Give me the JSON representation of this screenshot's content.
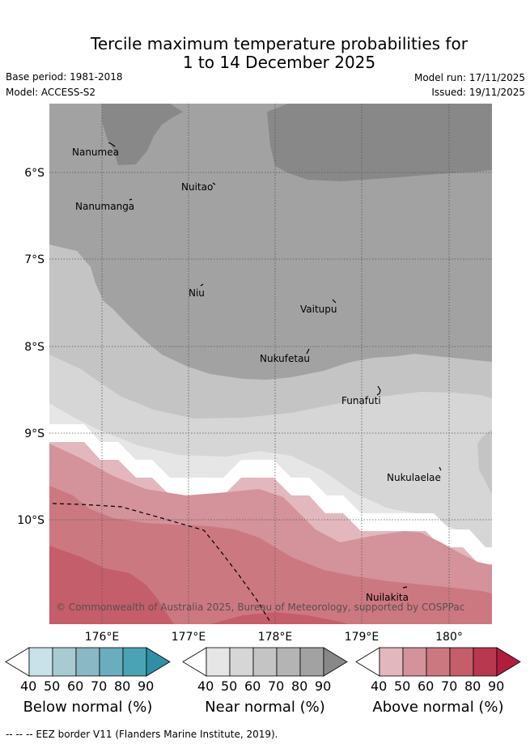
{
  "header": {
    "title_line1": "Tercile maximum temperature probabilities for",
    "title_line2": "1 to 14 December 2025",
    "base_period": "Base period: 1981-2018",
    "model": "Model: ACCESS-S2",
    "model_run": "Model run: 17/11/2025",
    "issued": "Issued: 19/11/2025"
  },
  "map": {
    "lat_labels": [
      "6°S",
      "7°S",
      "8°S",
      "9°S",
      "10°S"
    ],
    "lon_labels": [
      "176°E",
      "177°E",
      "178°E",
      "179°E",
      "180°"
    ],
    "places": [
      {
        "name": "Nanumea"
      },
      {
        "name": "Nuitao"
      },
      {
        "name": "Nanumanga"
      },
      {
        "name": "Niu"
      },
      {
        "name": "Vaitupu"
      },
      {
        "name": "Nukufetau"
      },
      {
        "name": "Funafuti"
      },
      {
        "name": "Nukulaelae"
      },
      {
        "name": "Nuilakita"
      }
    ],
    "copyright": "© Commonwealth of Australia 2025, Bureau of Meteorology, supported by COSPPac"
  },
  "colorbars": [
    {
      "title": "Below normal (%)",
      "ticks": [
        "40",
        "50",
        "60",
        "70",
        "80",
        "90"
      ],
      "colors": [
        "#ffffff",
        "#c9e2e9",
        "#a8cbd2",
        "#8ab8c5",
        "#6aadbf",
        "#4aa3b5",
        "#2e8fa6"
      ]
    },
    {
      "title": "Near normal (%)",
      "ticks": [
        "40",
        "50",
        "60",
        "70",
        "80",
        "90"
      ],
      "colors": [
        "#ffffff",
        "#e6e6e6",
        "#d6d6d6",
        "#c4c4c4",
        "#b4b4b4",
        "#a2a2a2",
        "#888888"
      ]
    },
    {
      "title": "Above normal (%)",
      "ticks": [
        "40",
        "50",
        "60",
        "70",
        "80",
        "90"
      ],
      "colors": [
        "#ffffff",
        "#e2b8be",
        "#d4929a",
        "#cc7880",
        "#c45e6a",
        "#b83850",
        "#b01e3c"
      ]
    }
  ],
  "footnote": "--  --  -- EEZ border V11 (Flanders Marine Institute, 2019)."
}
